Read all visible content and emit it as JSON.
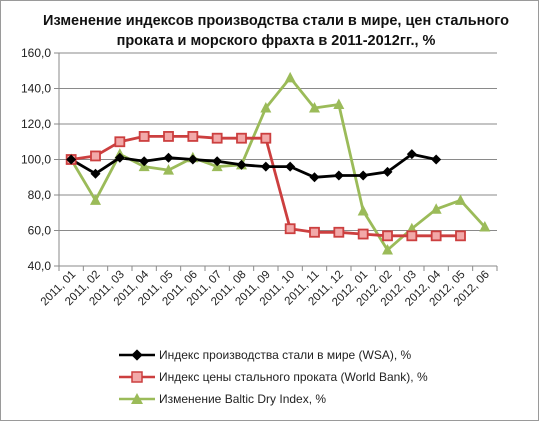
{
  "chart_data": {
    "type": "line",
    "title": "Изменение индексов производства стали в мире, цен стального проката и морского фрахта в 2011-2012гг., %",
    "xlabel": "",
    "ylabel": "",
    "categories": [
      "2011, 01",
      "2011, 02",
      "2011, 03",
      "2011, 04",
      "2011, 05",
      "2011, 06",
      "2011, 07",
      "2011, 08",
      "2011, 09",
      "2011, 10",
      "2011, 11",
      "2011, 12",
      "2012, 01",
      "2012, 02",
      "2012, 03",
      "2012, 04",
      "2012, 05",
      "2012, 06"
    ],
    "ylim": [
      40,
      160
    ],
    "yticks": [
      "40,0",
      "60,0",
      "80,0",
      "100,0",
      "120,0",
      "140,0",
      "160,0"
    ],
    "grid": true,
    "legend_position": "bottom",
    "series": [
      {
        "name": "Индекс производства стали в мире (WSA), %",
        "color": "#000000",
        "marker": "diamond",
        "values": [
          100,
          92,
          101,
          99,
          101,
          100,
          99,
          97,
          96,
          96,
          90,
          91,
          91,
          93,
          103,
          100,
          null,
          null
        ]
      },
      {
        "name": "Индекс цены стального проката (World Bank), %",
        "color": "#cc3f3f",
        "marker": "square",
        "values": [
          100,
          102,
          110,
          113,
          113,
          113,
          112,
          112,
          112,
          61,
          59,
          59,
          58,
          57,
          57,
          57,
          57,
          null
        ]
      },
      {
        "name": "Изменение Baltic Dry Index, %",
        "color": "#9bbb59",
        "marker": "triangle",
        "values": [
          100,
          77,
          103,
          96,
          94,
          101,
          96,
          97,
          129,
          146,
          129,
          131,
          71,
          49,
          61,
          72,
          77,
          62
        ]
      }
    ]
  }
}
